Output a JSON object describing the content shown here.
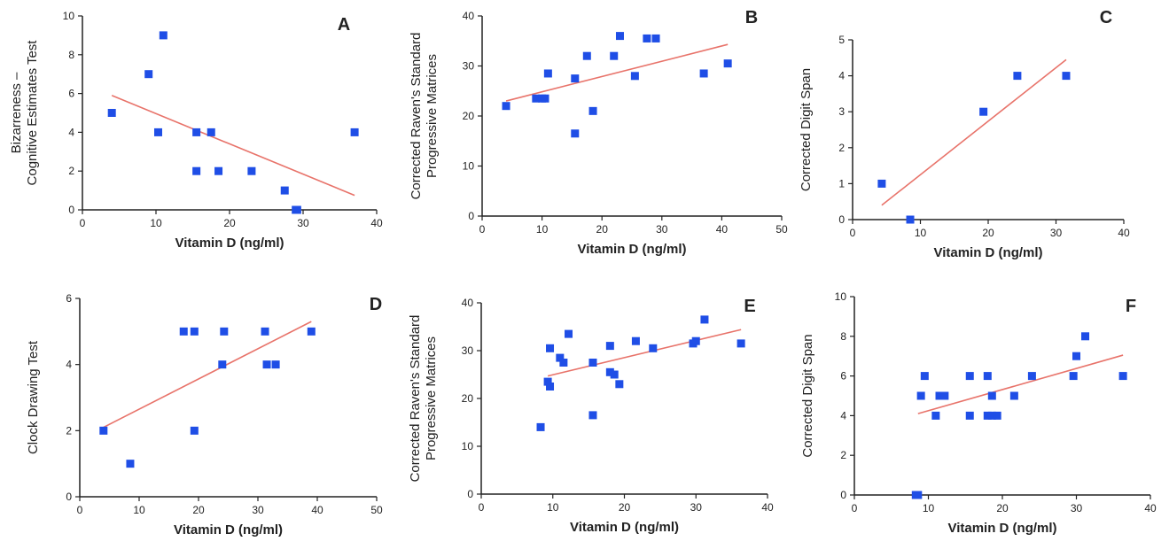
{
  "chart_data": [
    {
      "type": "scatter",
      "panel": "A",
      "xlabel": "Vitamin D (ng/ml)",
      "ylabel": [
        "Bizarreness –",
        "Cognitive Estimates Test"
      ],
      "xlim": [
        0,
        40
      ],
      "ylim": [
        0,
        10
      ],
      "xticks": [
        0,
        10,
        20,
        30,
        40
      ],
      "yticks": [
        0,
        2,
        4,
        6,
        8,
        10
      ],
      "points": [
        [
          4,
          5
        ],
        [
          9,
          7
        ],
        [
          10.3,
          4
        ],
        [
          11,
          9
        ],
        [
          15.5,
          4
        ],
        [
          15.5,
          2
        ],
        [
          17.5,
          4
        ],
        [
          18.5,
          2
        ],
        [
          23,
          2
        ],
        [
          27.5,
          1
        ],
        [
          29,
          0
        ],
        [
          29.2,
          0
        ],
        [
          37,
          4
        ]
      ],
      "trend": [
        [
          4,
          5.9
        ],
        [
          37,
          0.75
        ]
      ]
    },
    {
      "type": "scatter",
      "panel": "B",
      "xlabel": "Vitamin D (ng/ml)",
      "ylabel": [
        "Corrected Raven's Standard",
        "Progressive Matrices"
      ],
      "xlim": [
        0,
        50
      ],
      "ylim": [
        0,
        40
      ],
      "xticks": [
        0,
        10,
        20,
        30,
        40,
        50
      ],
      "yticks": [
        0,
        10,
        20,
        30,
        40
      ],
      "points": [
        [
          4,
          22
        ],
        [
          9,
          23.5
        ],
        [
          10,
          23.5
        ],
        [
          10.5,
          23.5
        ],
        [
          11,
          28.5
        ],
        [
          15.5,
          27.5
        ],
        [
          15.5,
          16.5
        ],
        [
          17.5,
          32
        ],
        [
          18.5,
          21
        ],
        [
          22,
          32
        ],
        [
          23,
          36
        ],
        [
          25.5,
          28
        ],
        [
          27.5,
          35.5
        ],
        [
          29,
          35.5
        ],
        [
          37,
          28.5
        ],
        [
          41,
          30.5
        ]
      ],
      "trend": [
        [
          4,
          23
        ],
        [
          41,
          34.3
        ]
      ]
    },
    {
      "type": "scatter",
      "panel": "C",
      "xlabel": "Vitamin D (ng/ml)",
      "ylabel": [
        "Corrected Digit Span"
      ],
      "xlim": [
        0,
        40
      ],
      "ylim": [
        0,
        5
      ],
      "xticks": [
        0,
        10,
        20,
        30,
        40
      ],
      "yticks": [
        0,
        1,
        2,
        3,
        4,
        5
      ],
      "points": [
        [
          4.3,
          1
        ],
        [
          8.5,
          0
        ],
        [
          19.3,
          3
        ],
        [
          24.3,
          4
        ],
        [
          31.5,
          4
        ]
      ],
      "trend": [
        [
          4.3,
          0.4
        ],
        [
          31.5,
          4.45
        ]
      ]
    },
    {
      "type": "scatter",
      "panel": "D",
      "xlabel": "Vitamin D (ng/ml)",
      "ylabel": [
        "Clock Drawing Test"
      ],
      "xlim": [
        0,
        50
      ],
      "ylim": [
        0,
        6
      ],
      "xticks": [
        0,
        10,
        20,
        30,
        40,
        50
      ],
      "yticks": [
        0,
        2,
        4,
        6
      ],
      "points": [
        [
          4,
          2
        ],
        [
          8.5,
          1
        ],
        [
          17.5,
          5
        ],
        [
          19.3,
          5
        ],
        [
          19.3,
          2
        ],
        [
          24,
          4
        ],
        [
          24.3,
          5
        ],
        [
          31.2,
          5
        ],
        [
          31.5,
          4
        ],
        [
          33,
          4
        ],
        [
          39,
          5
        ]
      ],
      "trend": [
        [
          4,
          2.1
        ],
        [
          39,
          5.3
        ]
      ]
    },
    {
      "type": "scatter",
      "panel": "E",
      "xlabel": "Vitamin D (ng/ml)",
      "ylabel": [
        "Corrected Raven's Standard",
        "Progressive Matrices"
      ],
      "xlim": [
        0,
        40
      ],
      "ylim": [
        0,
        40
      ],
      "xticks": [
        0,
        10,
        20,
        30,
        40
      ],
      "yticks": [
        0,
        10,
        20,
        30,
        40
      ],
      "points": [
        [
          8.3,
          14
        ],
        [
          9.3,
          23.5
        ],
        [
          9.6,
          22.5
        ],
        [
          9.6,
          30.5
        ],
        [
          11,
          28.5
        ],
        [
          11.5,
          27.5
        ],
        [
          12.2,
          33.5
        ],
        [
          15.6,
          16.5
        ],
        [
          15.6,
          27.5
        ],
        [
          18,
          25.5
        ],
        [
          18,
          31
        ],
        [
          18.6,
          25
        ],
        [
          19.3,
          23
        ],
        [
          21.6,
          32
        ],
        [
          24,
          30.5
        ],
        [
          29.6,
          31.5
        ],
        [
          30,
          32
        ],
        [
          31.2,
          36.5
        ],
        [
          36.3,
          31.5
        ]
      ],
      "trend": [
        [
          9.3,
          24.7
        ],
        [
          36.3,
          34.4
        ]
      ]
    },
    {
      "type": "scatter",
      "panel": "F",
      "xlabel": "Vitamin D (ng/ml)",
      "ylabel": [
        "Corrected Digit Span"
      ],
      "xlim": [
        0,
        40
      ],
      "ylim": [
        0,
        10
      ],
      "xticks": [
        0,
        10,
        20,
        30,
        40
      ],
      "yticks": [
        0,
        2,
        4,
        6,
        8,
        10
      ],
      "points": [
        [
          8.3,
          0
        ],
        [
          8.6,
          0
        ],
        [
          9,
          5
        ],
        [
          9.5,
          6
        ],
        [
          11,
          4
        ],
        [
          11.5,
          5
        ],
        [
          12.2,
          5
        ],
        [
          15.6,
          4
        ],
        [
          15.6,
          6
        ],
        [
          18,
          6
        ],
        [
          18,
          4
        ],
        [
          18.6,
          5
        ],
        [
          18.6,
          4
        ],
        [
          19.3,
          4
        ],
        [
          21.6,
          5
        ],
        [
          24,
          6
        ],
        [
          29.6,
          6
        ],
        [
          30,
          7
        ],
        [
          31.2,
          8
        ],
        [
          36.3,
          6
        ]
      ],
      "trend": [
        [
          8.6,
          4.1
        ],
        [
          36.3,
          7.05
        ]
      ]
    }
  ],
  "colors": {
    "point": "#1f4ee6",
    "trend": "#e8736a",
    "axis": "#222222"
  }
}
